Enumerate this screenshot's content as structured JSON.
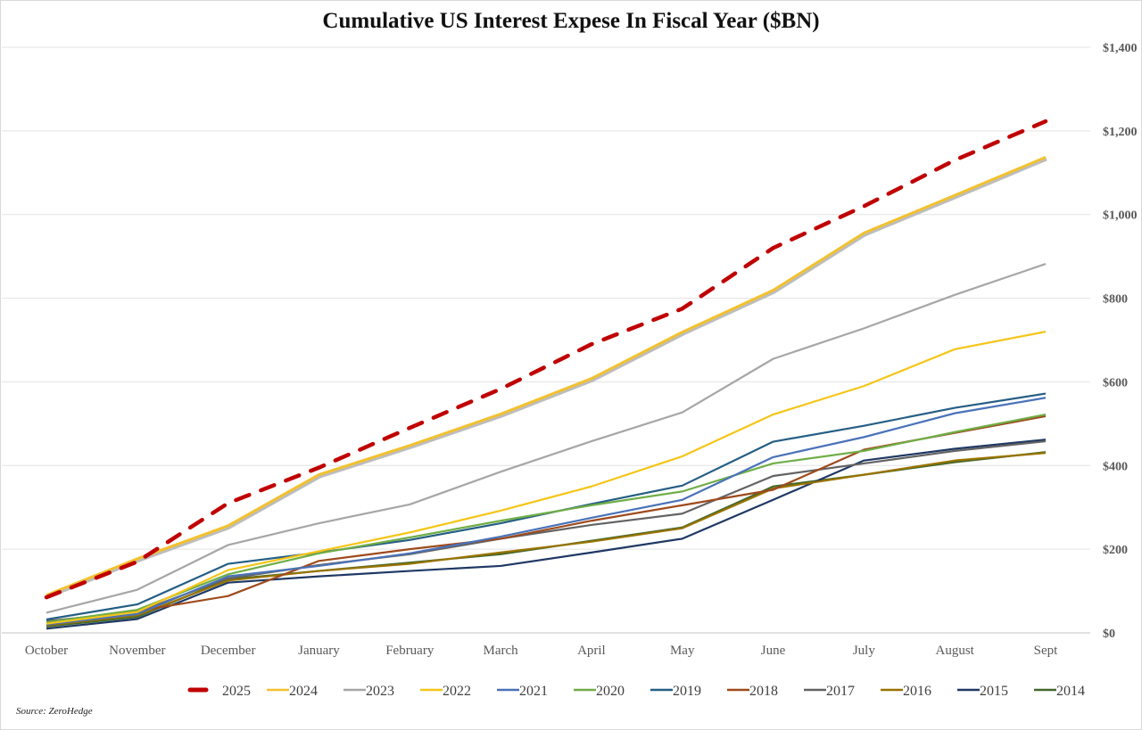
{
  "chart_data": {
    "type": "line",
    "title": "Cumulative US Interest Expese In Fiscal Year ($BN)",
    "xlabel": "",
    "ylabel": "",
    "categories": [
      "October",
      "November",
      "December",
      "January",
      "February",
      "March",
      "April",
      "May",
      "June",
      "July",
      "August",
      "Sept"
    ],
    "ylim": [
      0,
      1400
    ],
    "yticks": [
      0,
      200,
      400,
      600,
      800,
      1000,
      1200,
      1400
    ],
    "ytick_labels": [
      "$0",
      "$200",
      "$400",
      "$600",
      "$800",
      "$1,000",
      "$1,200",
      "$1,400"
    ],
    "y_axis_side": "right",
    "grid": true,
    "legend_position": "bottom",
    "series": [
      {
        "name": "2025",
        "color": "#c00000",
        "dashed": true,
        "values": [
          85,
          170,
          310,
          395,
          490,
          583,
          690,
          775,
          920,
          1020,
          1130,
          1223
        ]
      },
      {
        "name": "2024",
        "color": "#f2c12e",
        "dashed": false,
        "values": [
          90,
          177,
          256,
          378,
          448,
          523,
          608,
          719,
          819,
          956,
          1046,
          1137
        ]
      },
      {
        "name": "2023",
        "color": "#a6a6a6",
        "dashed": false,
        "values": [
          48,
          103,
          210,
          262,
          307,
          385,
          458,
          527,
          655,
          728,
          808,
          882
        ]
      },
      {
        "name": "2022",
        "color": "#f5c518",
        "dashed": false,
        "values": [
          22,
          50,
          150,
          195,
          240,
          292,
          350,
          422,
          522,
          590,
          678,
          720
        ]
      },
      {
        "name": "2021",
        "color": "#4a72b8",
        "dashed": false,
        "values": [
          20,
          45,
          135,
          160,
          190,
          230,
          275,
          318,
          420,
          468,
          525,
          562
        ]
      },
      {
        "name": "2020",
        "color": "#70ad47",
        "dashed": false,
        "values": [
          25,
          55,
          140,
          190,
          228,
          268,
          305,
          338,
          405,
          435,
          480,
          522
        ]
      },
      {
        "name": "2019",
        "color": "#255e84",
        "dashed": false,
        "values": [
          32,
          68,
          165,
          192,
          222,
          262,
          308,
          352,
          457,
          495,
          538,
          572
        ]
      },
      {
        "name": "2018",
        "color": "#9e4a1c",
        "dashed": false,
        "values": [
          25,
          52,
          88,
          172,
          200,
          225,
          268,
          305,
          342,
          438,
          478,
          518
        ]
      },
      {
        "name": "2017",
        "color": "#636363",
        "dashed": false,
        "values": [
          28,
          50,
          130,
          162,
          188,
          225,
          258,
          285,
          375,
          405,
          435,
          458
        ]
      },
      {
        "name": "2016",
        "color": "#997300",
        "dashed": false,
        "values": [
          18,
          42,
          125,
          148,
          165,
          192,
          218,
          250,
          345,
          378,
          412,
          430
        ]
      },
      {
        "name": "2015",
        "color": "#1f3864",
        "dashed": false,
        "values": [
          10,
          33,
          120,
          135,
          148,
          160,
          192,
          225,
          318,
          412,
          440,
          462
        ]
      },
      {
        "name": "2014",
        "color": "#43682b",
        "dashed": false,
        "values": [
          15,
          38,
          128,
          148,
          168,
          188,
          220,
          252,
          350,
          378,
          408,
          432
        ]
      }
    ]
  },
  "source": "Source: ZeroHedge"
}
